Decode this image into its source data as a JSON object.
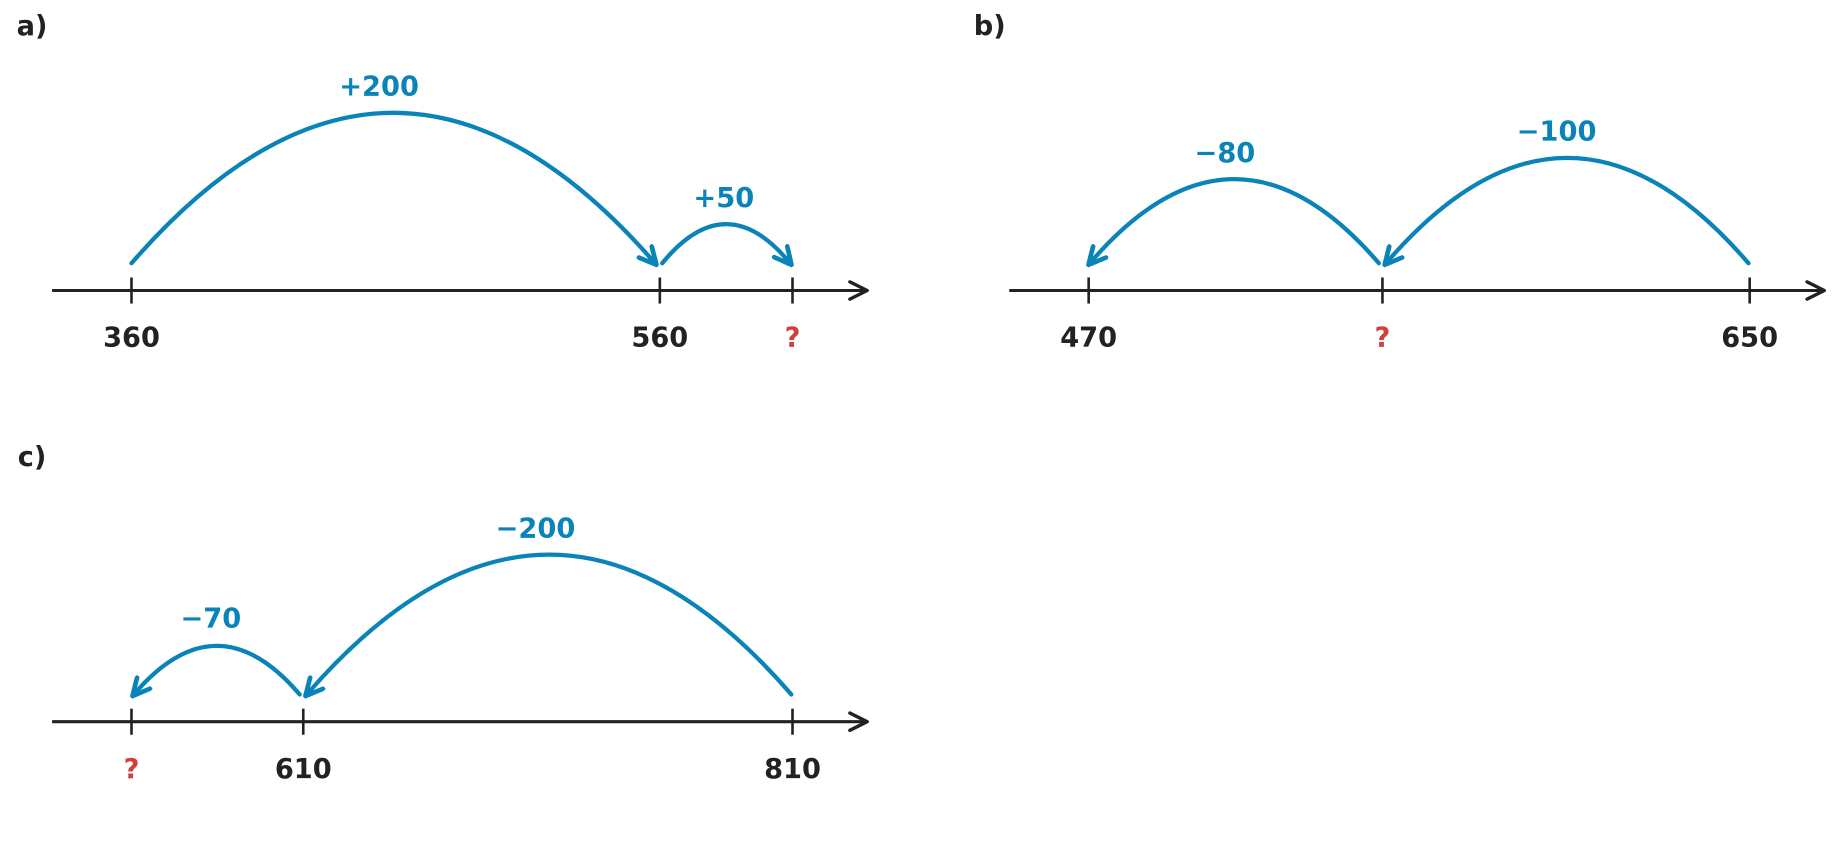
{
  "panels": [
    {
      "label": "a)",
      "ticks": [
        "360",
        "560",
        "?"
      ],
      "jumps": [
        "+200",
        "+50"
      ]
    },
    {
      "label": "b)",
      "ticks": [
        "470",
        "?",
        "650"
      ],
      "jumps": [
        "−100",
        "−80"
      ]
    },
    {
      "label": "c)",
      "ticks": [
        "?",
        "610",
        "810"
      ],
      "jumps": [
        "−200",
        "−70"
      ]
    }
  ]
}
